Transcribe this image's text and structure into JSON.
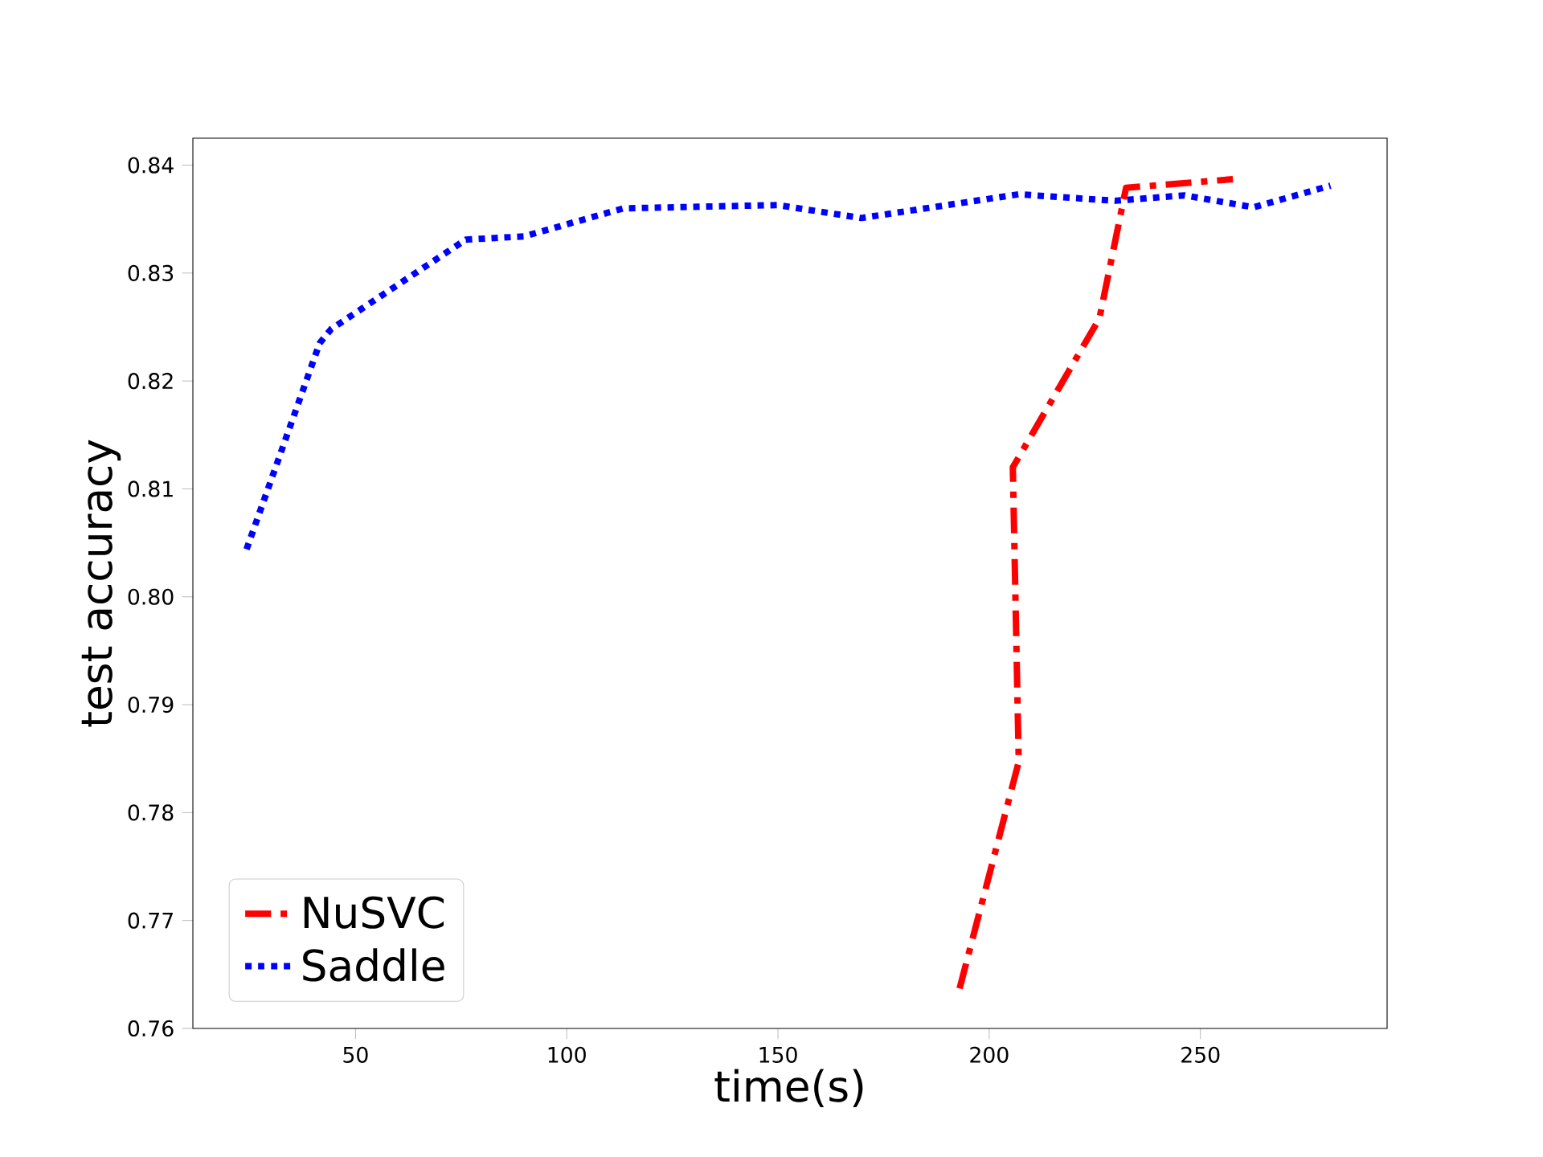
{
  "chart_data": {
    "type": "line",
    "xlabel": "time(s)",
    "ylabel": "test accuracy",
    "xlim": [
      11.5,
      294.2
    ],
    "ylim": [
      0.76,
      0.8425
    ],
    "xticks": [
      50,
      100,
      150,
      200,
      250
    ],
    "yticks": [
      {
        "value": 0.76,
        "label": "0.76"
      },
      {
        "value": 0.77,
        "label": "0.77"
      },
      {
        "value": 0.78,
        "label": "0.78"
      },
      {
        "value": 0.79,
        "label": "0.79"
      },
      {
        "value": 0.8,
        "label": "0.80"
      },
      {
        "value": 0.81,
        "label": "0.81"
      },
      {
        "value": 0.82,
        "label": "0.82"
      },
      {
        "value": 0.83,
        "label": "0.83"
      },
      {
        "value": 0.84,
        "label": "0.84"
      }
    ],
    "legend": "bottom left",
    "series": [
      {
        "name": "NuSVC",
        "color": "#ff0000",
        "line_style": "dashdot",
        "x": [
          193,
          207,
          205.6,
          226.1,
          232.4,
          257.7
        ],
        "values": [
          0.7637,
          0.7847,
          0.812,
          0.8258,
          0.8379,
          0.8387
        ]
      },
      {
        "name": "Saddle",
        "color": "#0000ff",
        "line_style": "dotted",
        "x": [
          24.2,
          41.5,
          44.2,
          76.1,
          89.9,
          113.4,
          150,
          169.7,
          207,
          229.8,
          246.2,
          262.6,
          280.8
        ],
        "values": [
          0.8044,
          0.8235,
          0.8248,
          0.8331,
          0.8334,
          0.836,
          0.8363,
          0.8351,
          0.8373,
          0.8367,
          0.8372,
          0.8361,
          0.8381
        ]
      }
    ]
  }
}
